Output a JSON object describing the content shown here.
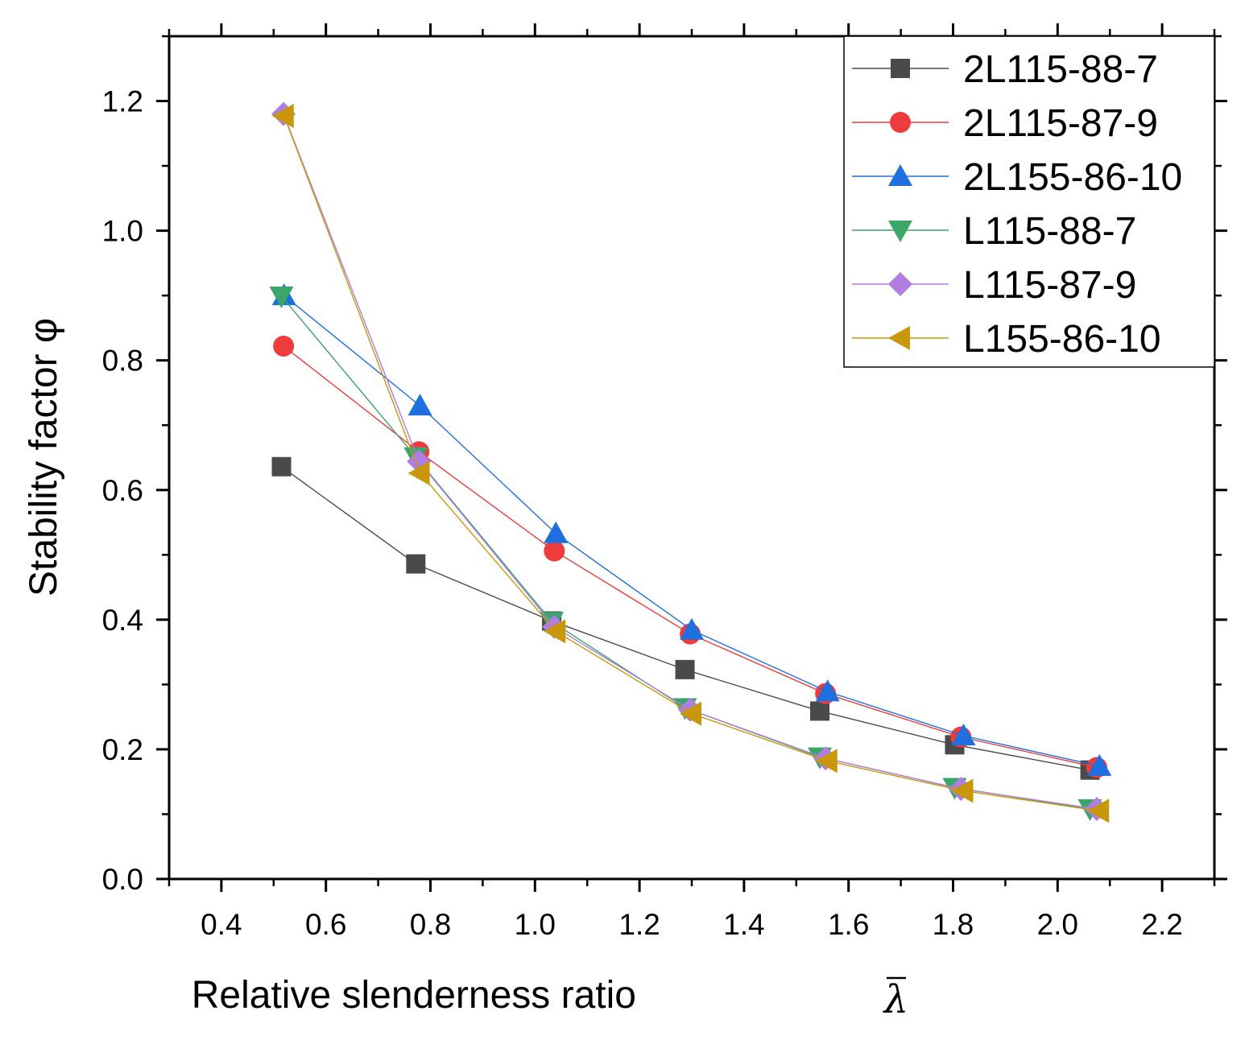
{
  "chart_data": {
    "type": "line",
    "title": "",
    "xlabel": "Relative slenderness ratio",
    "xlabel_symbol": "λ",
    "ylabel": "Stability factor φ",
    "xlim": [
      0.3,
      2.3
    ],
    "ylim": [
      0.0,
      1.3
    ],
    "x_ticks": [
      "0.4",
      "0.6",
      "0.8",
      "1.0",
      "1.2",
      "1.4",
      "1.6",
      "1.8",
      "2.0",
      "2.2"
    ],
    "y_ticks": [
      "0.0",
      "0.2",
      "0.4",
      "0.6",
      "0.8",
      "1.0",
      "1.2"
    ],
    "grid": false,
    "legend_position": "top-right",
    "series": [
      {
        "name": "2L115-88-7",
        "color": "#4a4a4a",
        "marker": "square",
        "x": [
          0.515,
          0.772,
          1.032,
          1.287,
          1.545,
          1.803,
          2.062
        ],
        "y": [
          0.636,
          0.486,
          0.398,
          0.323,
          0.259,
          0.207,
          0.168
        ]
      },
      {
        "name": "2L115-87-9",
        "color": "#ee3b3b",
        "marker": "circle",
        "x": [
          0.519,
          0.778,
          1.037,
          1.297,
          1.556,
          1.815,
          2.075
        ],
        "y": [
          0.822,
          0.659,
          0.506,
          0.378,
          0.286,
          0.219,
          0.172
        ]
      },
      {
        "name": "2L155-86-10",
        "color": "#1f6fe0",
        "marker": "triangle-up",
        "x": [
          0.52,
          0.78,
          1.04,
          1.3,
          1.56,
          1.82,
          2.08
        ],
        "y": [
          0.9,
          0.73,
          0.533,
          0.384,
          0.289,
          0.221,
          0.174
        ]
      },
      {
        "name": "L115-88-7",
        "color": "#3aa66a",
        "marker": "triangle-down",
        "x": [
          0.515,
          0.772,
          1.032,
          1.287,
          1.545,
          1.803,
          2.062
        ],
        "y": [
          0.899,
          0.651,
          0.397,
          0.264,
          0.188,
          0.141,
          0.108
        ]
      },
      {
        "name": "L115-87-9",
        "color": "#b07de0",
        "marker": "diamond",
        "x": [
          0.519,
          0.778,
          1.037,
          1.297,
          1.556,
          1.815,
          2.075
        ],
        "y": [
          1.18,
          0.644,
          0.389,
          0.261,
          0.186,
          0.139,
          0.108
        ]
      },
      {
        "name": "L155-86-10",
        "color": "#c9980a",
        "marker": "triangle-left",
        "x": [
          0.52,
          0.78,
          1.04,
          1.3,
          1.56,
          1.82,
          2.08
        ],
        "y": [
          1.177,
          0.626,
          0.382,
          0.255,
          0.182,
          0.136,
          0.105
        ]
      }
    ]
  }
}
